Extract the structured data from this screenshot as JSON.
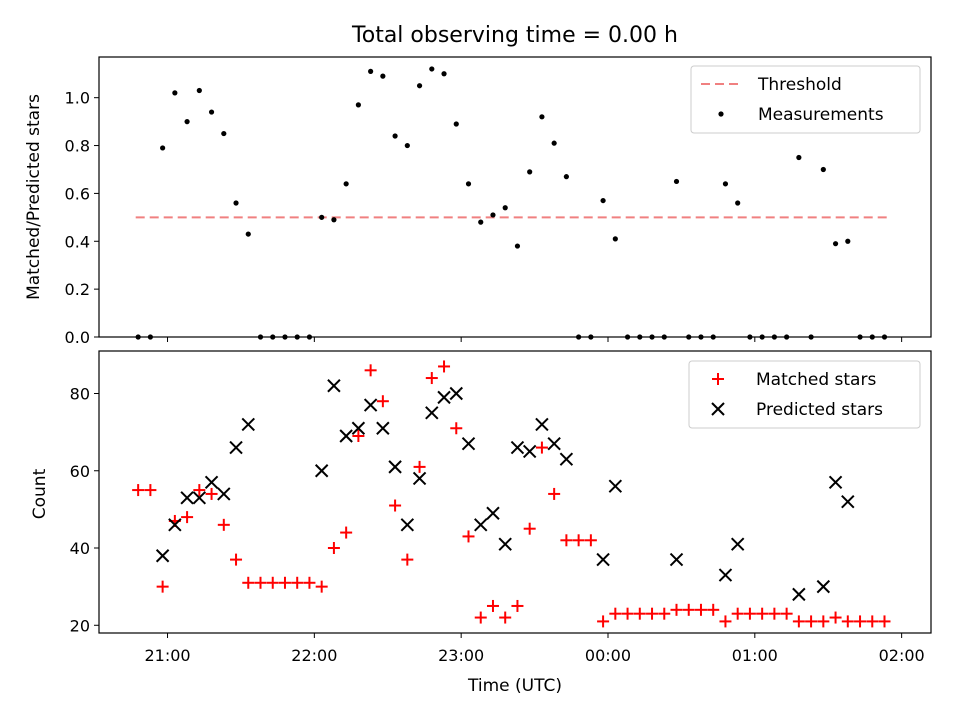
{
  "chart_data": [
    {
      "type": "scatter",
      "title": "Total observing time = 0.00 h",
      "ylabel": "Matched/Predicted stars",
      "xlabel": "",
      "xlim": [
        "20:32",
        "02:12"
      ],
      "ylim": [
        0,
        1.17
      ],
      "yticks": [
        0.0,
        0.2,
        0.4,
        0.6,
        0.8,
        1.0
      ],
      "ytick_labels": [
        "0.0",
        "0.2",
        "0.4",
        "0.6",
        "0.8",
        "1.0"
      ],
      "legend_position": "upper right",
      "threshold": {
        "name": "Threshold",
        "y": 0.5,
        "x_start": "20:47",
        "x_end": "01:54",
        "color": "#f08080",
        "style": "dashed"
      },
      "series": [
        {
          "name": "Measurements",
          "color": "#000000",
          "marker": "dot",
          "x": [
            "20:48",
            "20:53",
            "20:58",
            "21:03",
            "21:08",
            "21:13",
            "21:18",
            "21:23",
            "21:28",
            "21:33",
            "21:38",
            "21:43",
            "21:48",
            "21:53",
            "21:58",
            "22:03",
            "22:08",
            "22:13",
            "22:18",
            "22:23",
            "22:28",
            "22:33",
            "22:38",
            "22:43",
            "22:48",
            "22:53",
            "22:58",
            "23:03",
            "23:08",
            "23:13",
            "23:18",
            "23:23",
            "23:28",
            "23:33",
            "23:38",
            "23:43",
            "23:48",
            "23:53",
            "23:58",
            "00:03",
            "00:08",
            "00:13",
            "00:18",
            "00:23",
            "00:28",
            "00:33",
            "00:38",
            "00:43",
            "00:48",
            "00:53",
            "00:58",
            "01:03",
            "01:08",
            "01:13",
            "01:18",
            "01:23",
            "01:28",
            "01:33",
            "01:38",
            "01:43",
            "01:48",
            "01:53"
          ],
          "values": [
            0.0,
            0.0,
            0.79,
            1.02,
            0.9,
            1.03,
            0.94,
            0.85,
            0.56,
            0.43,
            0.0,
            0.0,
            0.0,
            0.0,
            0.0,
            0.5,
            0.49,
            0.64,
            0.97,
            1.11,
            1.09,
            0.84,
            0.8,
            1.05,
            1.12,
            1.1,
            0.89,
            0.64,
            0.48,
            0.51,
            0.54,
            0.38,
            0.69,
            0.92,
            0.81,
            0.67,
            0.0,
            0.0,
            0.57,
            0.41,
            0.0,
            0.0,
            0.0,
            0.0,
            0.65,
            0.0,
            0.0,
            0.0,
            0.64,
            0.56,
            0.0,
            0.0,
            0.0,
            0.0,
            0.75,
            0.0,
            0.7,
            0.39,
            0.4,
            0.0,
            0.0,
            0.0
          ]
        }
      ]
    },
    {
      "type": "scatter",
      "xlabel": "Time (UTC)",
      "ylabel": "Count",
      "xlim": [
        "20:32",
        "02:12"
      ],
      "ylim": [
        18,
        91
      ],
      "yticks": [
        20,
        40,
        60,
        80
      ],
      "ytick_labels": [
        "20",
        "40",
        "60",
        "80"
      ],
      "xticks": [
        "21:00",
        "22:00",
        "23:00",
        "00:00",
        "01:00",
        "02:00"
      ],
      "legend_position": "upper right",
      "series": [
        {
          "name": "Matched stars",
          "color": "#ff0000",
          "marker": "plus",
          "x": [
            "20:48",
            "20:53",
            "20:58",
            "21:03",
            "21:08",
            "21:13",
            "21:18",
            "21:23",
            "21:28",
            "21:33",
            "21:38",
            "21:43",
            "21:48",
            "21:53",
            "21:58",
            "22:03",
            "22:08",
            "22:13",
            "22:18",
            "22:23",
            "22:28",
            "22:33",
            "22:38",
            "22:43",
            "22:48",
            "22:53",
            "22:58",
            "23:03",
            "23:08",
            "23:13",
            "23:18",
            "23:23",
            "23:28",
            "23:33",
            "23:38",
            "23:43",
            "23:48",
            "23:53",
            "23:58",
            "00:03",
            "00:08",
            "00:13",
            "00:18",
            "00:23",
            "00:28",
            "00:33",
            "00:38",
            "00:43",
            "00:48",
            "00:53",
            "00:58",
            "01:03",
            "01:08",
            "01:13",
            "01:18",
            "01:23",
            "01:28",
            "01:33",
            "01:38",
            "01:43",
            "01:48",
            "01:53"
          ],
          "values": [
            55,
            55,
            30,
            47,
            48,
            55,
            54,
            46,
            37,
            31,
            31,
            31,
            31,
            31,
            31,
            30,
            40,
            44,
            69,
            86,
            78,
            51,
            37,
            61,
            84,
            87,
            71,
            43,
            22,
            25,
            22,
            25,
            45,
            66,
            54,
            42,
            42,
            42,
            21,
            23,
            23,
            23,
            23,
            23,
            24,
            24,
            24,
            24,
            21,
            23,
            23,
            23,
            23,
            23,
            21,
            21,
            21,
            22,
            21,
            21,
            21,
            21
          ]
        },
        {
          "name": "Predicted stars",
          "color": "#000000",
          "marker": "x",
          "x": [
            "20:58",
            "21:03",
            "21:08",
            "21:13",
            "21:18",
            "21:23",
            "21:28",
            "21:33",
            "22:03",
            "22:08",
            "22:13",
            "22:18",
            "22:23",
            "22:28",
            "22:33",
            "22:38",
            "22:43",
            "22:48",
            "22:53",
            "22:58",
            "23:03",
            "23:08",
            "23:13",
            "23:18",
            "23:23",
            "23:28",
            "23:33",
            "23:38",
            "23:43",
            "23:58",
            "00:03",
            "00:28",
            "00:48",
            "00:53",
            "01:18",
            "01:28",
            "01:33",
            "01:38"
          ],
          "values": [
            38,
            46,
            53,
            53,
            57,
            54,
            66,
            72,
            60,
            82,
            69,
            71,
            77,
            71,
            61,
            46,
            58,
            75,
            79,
            80,
            67,
            46,
            49,
            41,
            66,
            65,
            72,
            67,
            63,
            37,
            56,
            37,
            33,
            41,
            28,
            30,
            57,
            52
          ]
        }
      ]
    }
  ]
}
